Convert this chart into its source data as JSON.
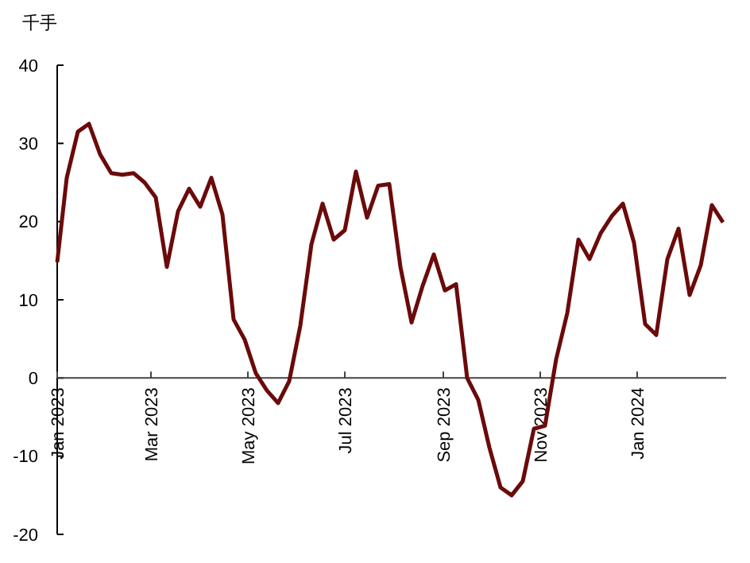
{
  "chart_data": {
    "type": "line",
    "ylabel": "千手",
    "xlim": [
      "2023-01-01",
      "2024-02-26"
    ],
    "ylim": [
      -20,
      40
    ],
    "yticks": [
      -20,
      -10,
      0,
      10,
      20,
      30,
      40
    ],
    "xticks": [
      {
        "value": "2023-01-01",
        "label": "Jan 2023"
      },
      {
        "value": "2023-03-01",
        "label": "Mar 2023"
      },
      {
        "value": "2023-05-01",
        "label": "May 2023"
      },
      {
        "value": "2023-07-01",
        "label": "Jul 2023"
      },
      {
        "value": "2023-09-01",
        "label": "Sep 2023"
      },
      {
        "value": "2023-11-01",
        "label": "Nov 2023"
      },
      {
        "value": "2024-01-01",
        "label": "Jan 2024"
      }
    ],
    "grid": false,
    "line_style": "solid",
    "x": [
      "2023-01-01",
      "2023-01-07",
      "2023-01-14",
      "2023-01-21",
      "2023-01-28",
      "2023-02-04",
      "2023-02-11",
      "2023-02-18",
      "2023-02-25",
      "2023-03-04",
      "2023-03-11",
      "2023-03-18",
      "2023-03-25",
      "2023-04-01",
      "2023-04-08",
      "2023-04-15",
      "2023-04-22",
      "2023-04-29",
      "2023-05-06",
      "2023-05-13",
      "2023-05-20",
      "2023-05-27",
      "2023-06-03",
      "2023-06-10",
      "2023-06-17",
      "2023-06-24",
      "2023-07-01",
      "2023-07-08",
      "2023-07-15",
      "2023-07-22",
      "2023-07-29",
      "2023-08-05",
      "2023-08-12",
      "2023-08-19",
      "2023-08-26",
      "2023-09-02",
      "2023-09-09",
      "2023-09-16",
      "2023-09-23",
      "2023-09-30",
      "2023-10-07",
      "2023-10-14",
      "2023-10-21",
      "2023-10-28",
      "2023-11-04",
      "2023-11-11",
      "2023-11-18",
      "2023-11-25",
      "2023-12-02",
      "2023-12-09",
      "2023-12-16",
      "2023-12-23",
      "2023-12-30",
      "2024-01-06",
      "2024-01-13",
      "2024-01-20",
      "2024-01-27",
      "2024-02-03",
      "2024-02-10",
      "2024-02-17",
      "2024-02-24"
    ],
    "series": [
      {
        "color": "#6b0a0a",
        "values": [
          14.8,
          25.6,
          31.5,
          32.5,
          28.6,
          26.2,
          26.0,
          26.2,
          25.0,
          23.1,
          14.2,
          21.3,
          24.2,
          21.9,
          25.6,
          20.9,
          7.5,
          4.9,
          0.6,
          -1.6,
          -3.2,
          -0.4,
          6.7,
          17.1,
          22.3,
          17.7,
          18.9,
          26.4,
          20.5,
          24.6,
          24.8,
          14.2,
          7.1,
          11.8,
          15.8,
          11.2,
          12.0,
          0,
          -2.8,
          -8.9,
          -14.0,
          -15.0,
          -13.2,
          -6.5,
          -6.1,
          2.4,
          8.3,
          17.7,
          15.2,
          18.5,
          20.7,
          22.3,
          17.3,
          6.9,
          5.5,
          15.2,
          19.1,
          10.6,
          14.4,
          22.1,
          19.9
        ]
      }
    ]
  }
}
